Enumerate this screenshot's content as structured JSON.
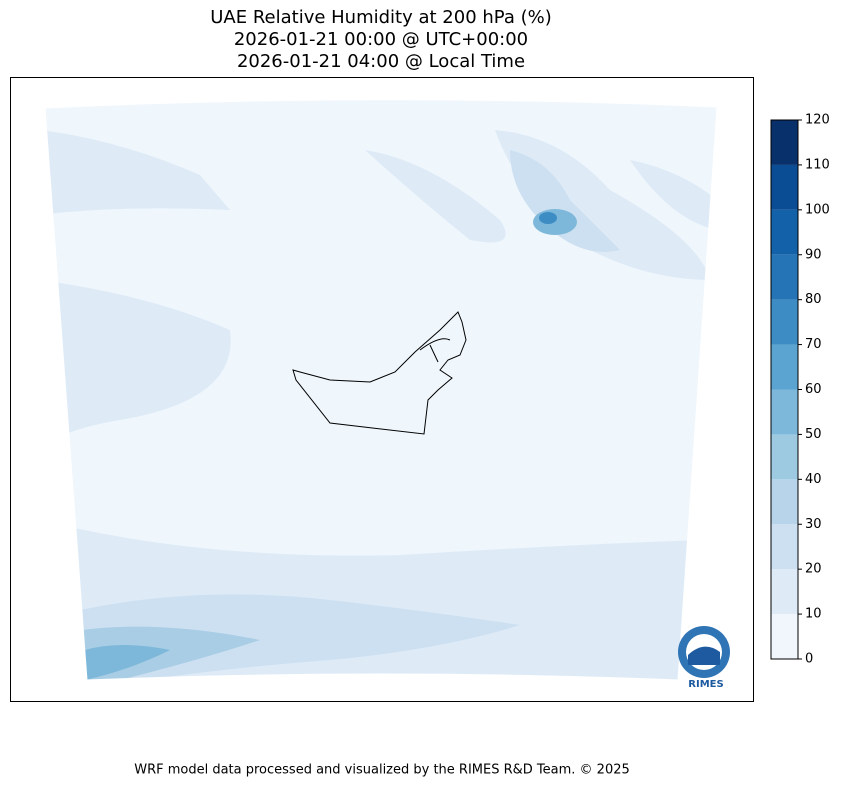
{
  "title": [
    "UAE Relative Humidity at 200 hPa (%)",
    "2026-01-21 00:00 @ UTC+00:00",
    "2026-01-21 04:00 @ Local Time"
  ],
  "colorbar": {
    "ticks": [
      0,
      10,
      20,
      30,
      40,
      50,
      60,
      70,
      80,
      90,
      100,
      110,
      120
    ],
    "colors": [
      "#f0f6fc",
      "#deebf7",
      "#cde0f1",
      "#b7d4ea",
      "#9dc9e1",
      "#7db8da",
      "#5ba3d0",
      "#3d8dc4",
      "#2474b6",
      "#1361a9",
      "#0a4d94",
      "#08306b"
    ]
  },
  "logo": "RIMES",
  "footer": "WRF model data processed and visualized by the RIMES R&D Team. © 2025"
}
